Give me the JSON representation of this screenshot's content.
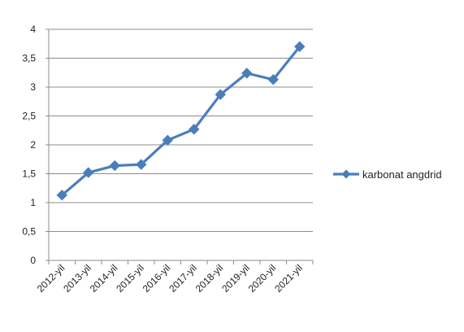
{
  "chart_data": {
    "type": "line",
    "categories": [
      "2012-yil",
      "2013-yil",
      "2014-yil",
      "2015-yil",
      "2016-yil",
      "2017-yil",
      "2018-yil",
      "2019-yil",
      "2020-yil",
      "2021-yil"
    ],
    "y_ticks": [
      "0",
      "0,5",
      "1",
      "1,5",
      "2",
      "2,5",
      "3",
      "3,5",
      "4"
    ],
    "ylim": [
      0,
      4
    ],
    "grid": "horizontal",
    "legend_position": "right",
    "series": [
      {
        "name": "karbonat angdrid",
        "values": [
          1.13,
          1.52,
          1.64,
          1.66,
          2.08,
          2.27,
          2.87,
          3.24,
          3.13,
          3.7
        ],
        "color": "#4a7ebb",
        "marker": "diamond"
      }
    ]
  }
}
